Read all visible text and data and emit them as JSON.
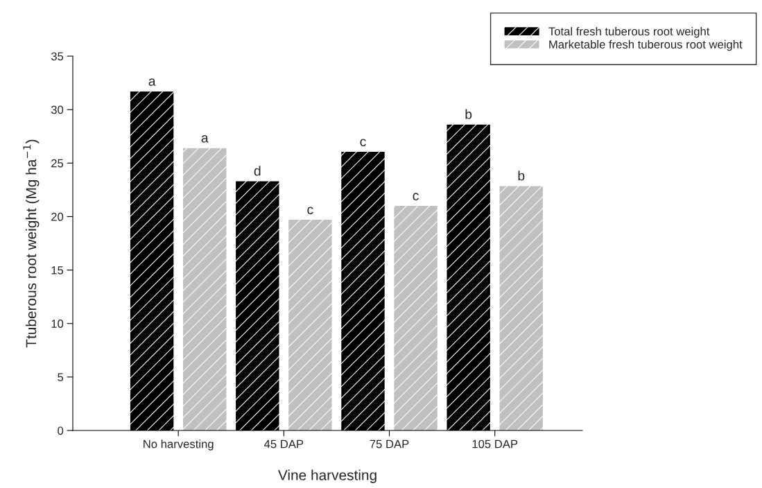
{
  "chart_data": {
    "type": "bar",
    "xlabel": "Vine harvesting",
    "ylabel": "Ttuberous root weight (Mg ha$^{−1}$)",
    "categories": [
      "No harvesting",
      "45 DAP",
      "75 DAP",
      "105 DAP"
    ],
    "series": [
      {
        "name": "Total fresh tuberous root weight",
        "color": "#000000",
        "values": [
          31.7,
          23.3,
          26.05,
          28.6
        ],
        "value_labels": [
          "a",
          "d",
          "c",
          "b"
        ]
      },
      {
        "name": "Marketable fresh tuberous root weight",
        "color": "#c0c0c0",
        "values": [
          26.4,
          19.7,
          21.0,
          22.85
        ],
        "value_labels": [
          "a",
          "c",
          "c",
          "b"
        ]
      }
    ],
    "ylim": [
      0,
      35
    ],
    "yticks": [
      0,
      5,
      10,
      15,
      20,
      25,
      30,
      35
    ],
    "grid": false,
    "legend": "top right"
  }
}
